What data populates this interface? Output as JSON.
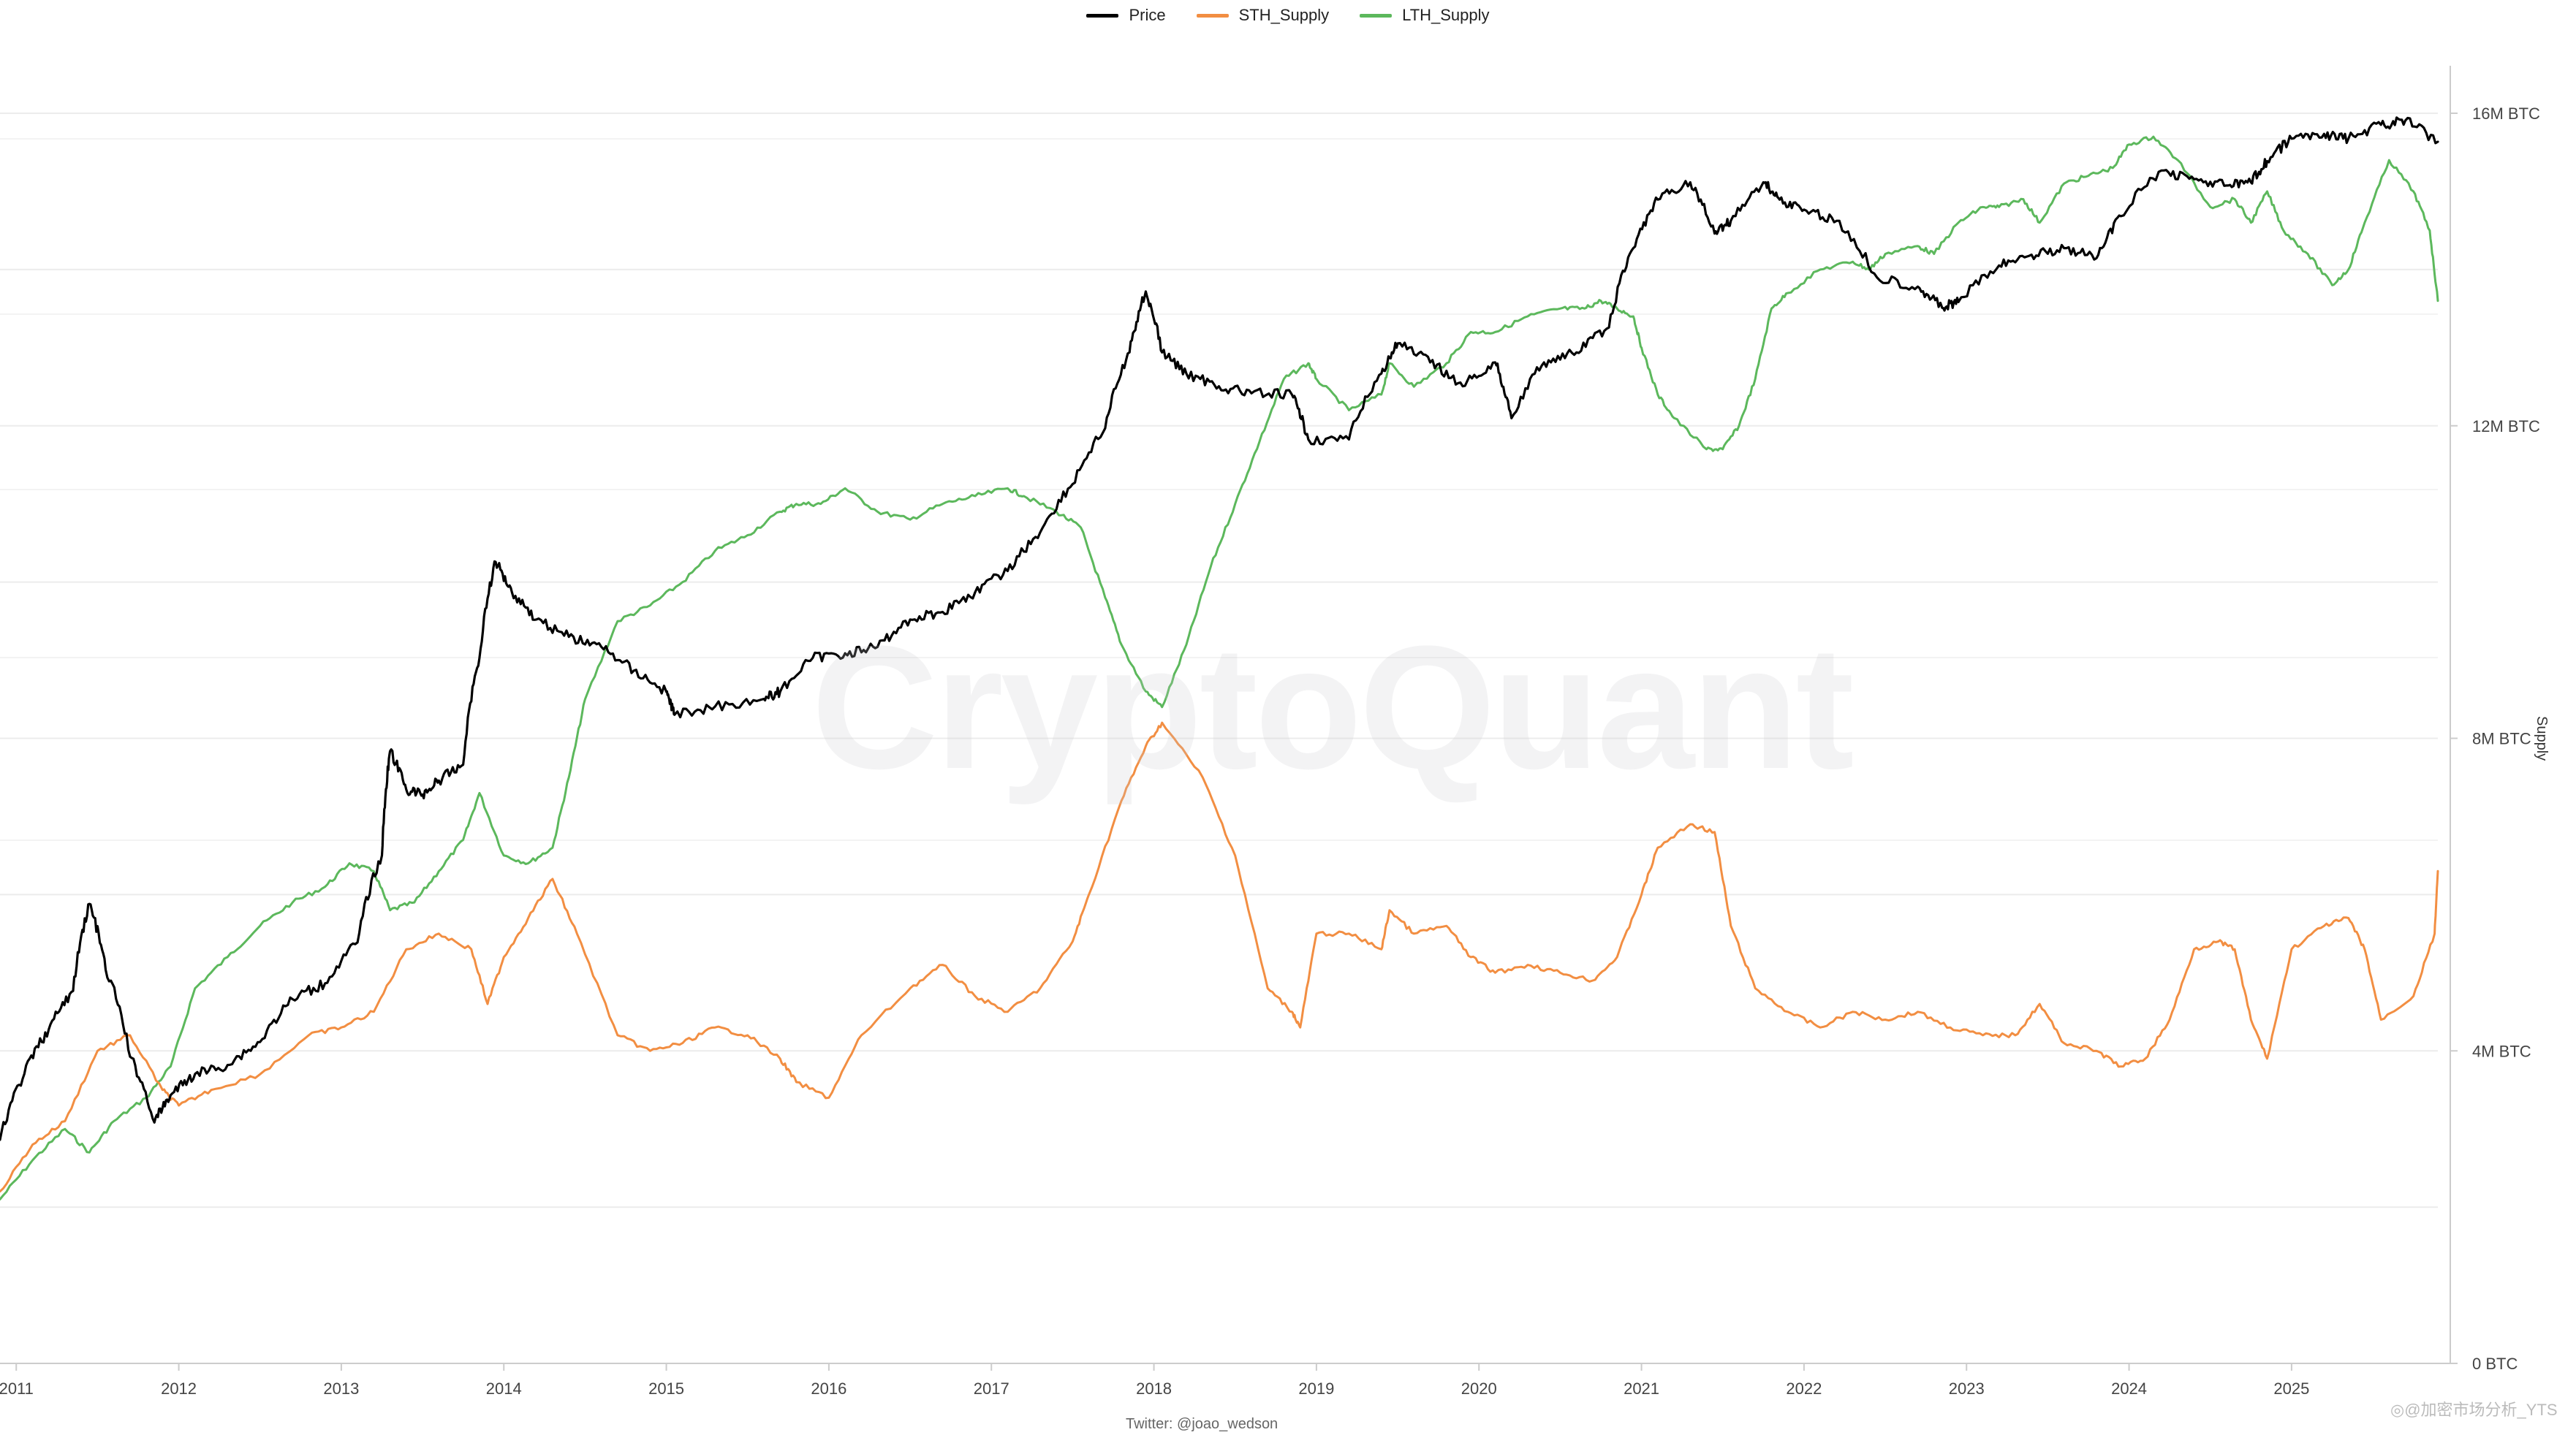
{
  "legend": {
    "items": [
      {
        "label": "Price",
        "color": "#000000"
      },
      {
        "label": "STH_Supply",
        "color": "#f28e42"
      },
      {
        "label": "LTH_Supply",
        "color": "#5cb85c"
      }
    ]
  },
  "watermark": "CryptoQuant",
  "credit": "Twitter: @joao_wedson",
  "source_tag": "◎@加密市场分析_YTS",
  "chart_data": {
    "type": "line",
    "title": "",
    "xlabel": "",
    "ylabel": "Supply",
    "x_ticks": [
      "2011",
      "2012",
      "2013",
      "2014",
      "2015",
      "2016",
      "2017",
      "2018",
      "2019",
      "2020",
      "2021",
      "2022",
      "2023",
      "2024",
      "2025"
    ],
    "y_ticks": [
      "0 BTC",
      "4M BTC",
      "8M BTC",
      "12M BTC",
      "16M BTC"
    ],
    "ylim": [
      0,
      16000000
    ],
    "xlim": [
      2010.9,
      2025.9
    ],
    "price_axis": "hidden, log scale",
    "legend_position": "top-center",
    "series": [
      {
        "name": "Price",
        "axis": "hidden-log",
        "x": [
          2010.9,
          2011.05,
          2011.2,
          2011.35,
          2011.45,
          2011.55,
          2011.7,
          2011.85,
          2011.95,
          2012.1,
          2012.3,
          2012.5,
          2012.7,
          2012.9,
          2013.1,
          2013.25,
          2013.3,
          2013.4,
          2013.5,
          2013.6,
          2013.75,
          2013.85,
          2013.95,
          2014.05,
          2014.2,
          2014.4,
          2014.6,
          2014.8,
          2015.0,
          2015.05,
          2015.3,
          2015.6,
          2015.7,
          2015.9,
          2016.1,
          2016.3,
          2016.5,
          2016.7,
          2016.9,
          2017.1,
          2017.3,
          2017.5,
          2017.7,
          2017.85,
          2017.95,
          2018.05,
          2018.2,
          2018.4,
          2018.6,
          2018.85,
          2018.95,
          2019.2,
          2019.4,
          2019.5,
          2019.7,
          2019.9,
          2020.1,
          2020.2,
          2020.4,
          2020.6,
          2020.8,
          2020.95,
          2021.1,
          2021.3,
          2021.45,
          2021.55,
          2021.75,
          2021.85,
          2022.0,
          2022.2,
          2022.45,
          2022.7,
          2022.85,
          2022.95,
          2023.2,
          2023.4,
          2023.6,
          2023.8,
          2023.95,
          2024.2,
          2024.4,
          2024.6,
          2024.75,
          2024.85,
          2025.0,
          2025.2,
          2025.35,
          2025.55,
          2025.7,
          2025.9
        ],
        "y": [
          2.5,
          5,
          8,
          12,
          30,
          15,
          6,
          3,
          4,
          5,
          5.5,
          7,
          11,
          13,
          20,
          50,
          150,
          100,
          95,
          110,
          130,
          400,
          1100,
          800,
          600,
          500,
          450,
          350,
          280,
          220,
          240,
          260,
          280,
          400,
          420,
          450,
          600,
          650,
          800,
          1000,
          1500,
          2500,
          4500,
          10000,
          19000,
          10000,
          8000,
          7000,
          6500,
          6400,
          4000,
          4000,
          8000,
          11000,
          9000,
          7000,
          9000,
          5000,
          9000,
          10000,
          13000,
          30000,
          50000,
          60000,
          35000,
          40000,
          60000,
          50000,
          45000,
          40000,
          22000,
          20000,
          16000,
          17000,
          25000,
          28000,
          30000,
          27000,
          42000,
          68000,
          62000,
          58000,
          60000,
          75000,
          95000,
          100000,
          95000,
          110000,
          115000,
          92000
        ]
      },
      {
        "name": "STH_Supply",
        "axis": "left",
        "x": [
          2010.9,
          2011.1,
          2011.3,
          2011.5,
          2011.7,
          2011.9,
          2012.0,
          2012.2,
          2012.5,
          2012.8,
          2013.0,
          2013.2,
          2013.4,
          2013.6,
          2013.8,
          2013.9,
          2014.0,
          2014.15,
          2014.3,
          2014.45,
          2014.7,
          2014.9,
          2015.1,
          2015.3,
          2015.5,
          2015.7,
          2015.8,
          2016.0,
          2016.2,
          2016.5,
          2016.7,
          2016.9,
          2017.1,
          2017.3,
          2017.5,
          2017.6,
          2017.8,
          2017.95,
          2018.05,
          2018.3,
          2018.5,
          2018.7,
          2018.85,
          2018.9,
          2019.0,
          2019.2,
          2019.4,
          2019.45,
          2019.6,
          2019.8,
          2019.95,
          2020.1,
          2020.3,
          2020.5,
          2020.7,
          2020.85,
          2021.0,
          2021.1,
          2021.3,
          2021.45,
          2021.55,
          2021.7,
          2021.9,
          2022.1,
          2022.3,
          2022.5,
          2022.7,
          2022.9,
          2023.1,
          2023.3,
          2023.45,
          2023.6,
          2023.8,
          2023.95,
          2024.1,
          2024.25,
          2024.4,
          2024.55,
          2024.65,
          2024.75,
          2024.85,
          2025.0,
          2025.2,
          2025.35,
          2025.45,
          2025.55,
          2025.75,
          2025.88,
          2025.9
        ],
        "y": [
          2200000,
          2800000,
          3100000,
          4000000,
          4200000,
          3500000,
          3300000,
          3500000,
          3700000,
          4200000,
          4300000,
          4500000,
          5300000,
          5500000,
          5300000,
          4600000,
          5200000,
          5700000,
          6200000,
          5500000,
          4200000,
          4000000,
          4100000,
          4300000,
          4200000,
          3900000,
          3600000,
          3400000,
          4200000,
          4800000,
          5100000,
          4700000,
          4500000,
          4800000,
          5400000,
          6000000,
          7200000,
          7900000,
          8200000,
          7500000,
          6500000,
          4800000,
          4500000,
          4300000,
          5500000,
          5500000,
          5300000,
          5800000,
          5500000,
          5600000,
          5200000,
          5000000,
          5100000,
          5000000,
          4900000,
          5200000,
          6000000,
          6600000,
          6900000,
          6800000,
          5600000,
          4800000,
          4500000,
          4300000,
          4500000,
          4400000,
          4500000,
          4300000,
          4200000,
          4200000,
          4600000,
          4100000,
          4000000,
          3800000,
          3900000,
          4400000,
          5300000,
          5400000,
          5300000,
          4400000,
          3900000,
          5300000,
          5600000,
          5700000,
          5300000,
          4400000,
          4700000,
          5500000,
          6300000
        ]
      },
      {
        "name": "LTH_Supply",
        "axis": "left",
        "x": [
          2010.9,
          2011.1,
          2011.3,
          2011.45,
          2011.6,
          2011.8,
          2011.95,
          2012.1,
          2012.3,
          2012.5,
          2012.7,
          2012.9,
          2013.05,
          2013.2,
          2013.3,
          2013.45,
          2013.6,
          2013.75,
          2013.85,
          2014.0,
          2014.15,
          2014.3,
          2014.4,
          2014.5,
          2014.7,
          2014.9,
          2015.1,
          2015.3,
          2015.5,
          2015.7,
          2015.8,
          2015.95,
          2016.1,
          2016.3,
          2016.5,
          2016.7,
          2016.9,
          2017.1,
          2017.2,
          2017.4,
          2017.55,
          2017.7,
          2017.8,
          2017.95,
          2018.05,
          2018.2,
          2018.35,
          2018.5,
          2018.65,
          2018.8,
          2018.95,
          2019.0,
          2019.2,
          2019.4,
          2019.45,
          2019.6,
          2019.8,
          2019.95,
          2020.1,
          2020.3,
          2020.5,
          2020.65,
          2020.75,
          2020.85,
          2020.95,
          2021.0,
          2021.1,
          2021.2,
          2021.4,
          2021.5,
          2021.6,
          2021.7,
          2021.8,
          2021.9,
          2022.1,
          2022.3,
          2022.4,
          2022.5,
          2022.7,
          2022.8,
          2022.95,
          2023.1,
          2023.2,
          2023.35,
          2023.45,
          2023.6,
          2023.75,
          2023.9,
          2024.0,
          2024.15,
          2024.3,
          2024.5,
          2024.65,
          2024.75,
          2024.85,
          2024.95,
          2025.1,
          2025.25,
          2025.35,
          2025.45,
          2025.6,
          2025.75,
          2025.85,
          2025.9
        ],
        "y": [
          2100000,
          2600000,
          3000000,
          2700000,
          3100000,
          3400000,
          3800000,
          4800000,
          5200000,
          5600000,
          5900000,
          6100000,
          6400000,
          6300000,
          5800000,
          5900000,
          6300000,
          6700000,
          7300000,
          6500000,
          6400000,
          6600000,
          7500000,
          8500000,
          9500000,
          9700000,
          10000000,
          10400000,
          10600000,
          10900000,
          11000000,
          11000000,
          11200000,
          10900000,
          10800000,
          11000000,
          11100000,
          11200000,
          11100000,
          10900000,
          10700000,
          9800000,
          9200000,
          8600000,
          8400000,
          9200000,
          10200000,
          11000000,
          11800000,
          12600000,
          12800000,
          12600000,
          12200000,
          12400000,
          12800000,
          12500000,
          12800000,
          13200000,
          13200000,
          13400000,
          13500000,
          13500000,
          13600000,
          13500000,
          13400000,
          13000000,
          12400000,
          12100000,
          11700000,
          11700000,
          12000000,
          12600000,
          13500000,
          13700000,
          14000000,
          14100000,
          14000000,
          14200000,
          14300000,
          14200000,
          14600000,
          14800000,
          14800000,
          14900000,
          14600000,
          15100000,
          15200000,
          15300000,
          15600000,
          15700000,
          15400000,
          14800000,
          14900000,
          14600000,
          15000000,
          14500000,
          14200000,
          13800000,
          14000000,
          14600000,
          15400000,
          15000000,
          14500000,
          13600000
        ]
      }
    ]
  }
}
